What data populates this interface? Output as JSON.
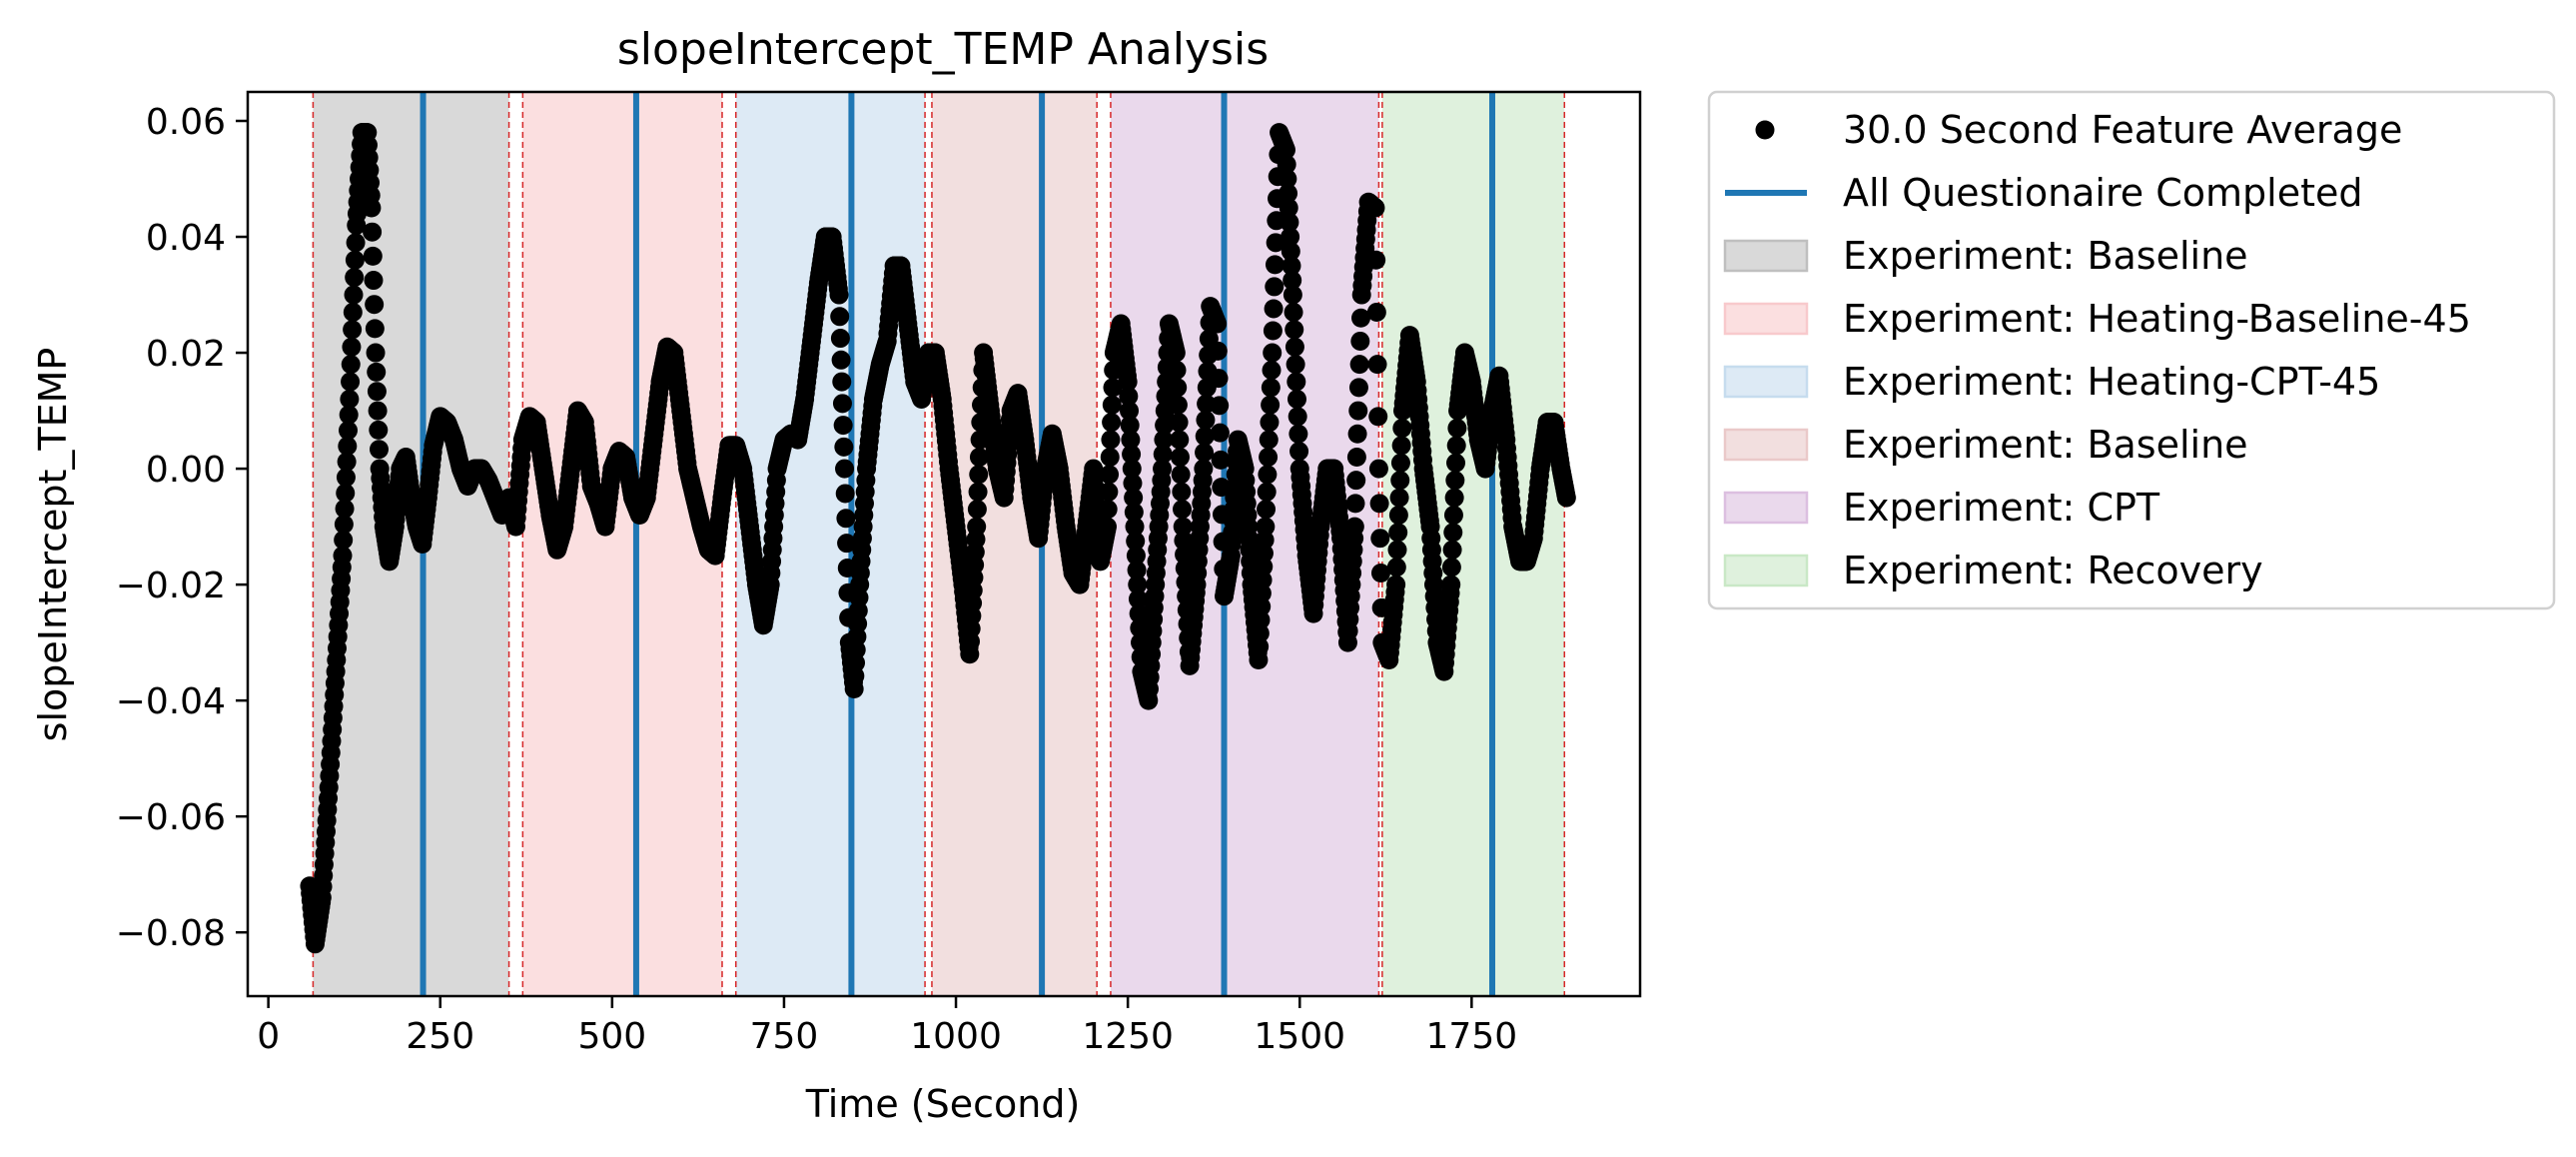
{
  "chart_data": {
    "type": "scatter",
    "title": "slopeIntercept_TEMP Analysis",
    "xlabel": "Time (Second)",
    "ylabel": "slopeIntercept_TEMP",
    "xlim": [
      -30,
      1995
    ],
    "ylim": [
      -0.091,
      0.065
    ],
    "x_ticks": [
      0,
      250,
      500,
      750,
      1000,
      1250,
      1500,
      1750
    ],
    "x_tick_labels": [
      "0",
      "250",
      "500",
      "750",
      "1000",
      "1250",
      "1500",
      "1750"
    ],
    "y_ticks": [
      -0.08,
      -0.06,
      -0.04,
      -0.02,
      0.0,
      0.02,
      0.04,
      0.06
    ],
    "y_tick_labels": [
      "−0.08",
      "−0.06",
      "−0.04",
      "−0.02",
      "0.00",
      "0.02",
      "0.04",
      "0.06"
    ],
    "grid": false,
    "legend_placement": "outside-top-right",
    "phases": [
      {
        "name": "Experiment: Baseline",
        "start": 65,
        "end": 350,
        "color": "#bfbfbf"
      },
      {
        "name": "Experiment: Heating-Baseline-45",
        "start": 370,
        "end": 660,
        "color": "#f8c9cc"
      },
      {
        "name": "Experiment: Heating-CPT-45",
        "start": 680,
        "end": 955,
        "color": "#c6dcee"
      },
      {
        "name": "Experiment: Baseline",
        "start": 965,
        "end": 1205,
        "color": "#eac9c9"
      },
      {
        "name": "Experiment: CPT",
        "start": 1225,
        "end": 1615,
        "color": "#dcbfe0"
      },
      {
        "name": "Experiment: Recovery",
        "start": 1620,
        "end": 1885,
        "color": "#c9e8c6"
      }
    ],
    "phase_boundaries": [
      65,
      350,
      370,
      660,
      680,
      955,
      965,
      1205,
      1225,
      1615,
      1620,
      1885
    ],
    "questionnaire_times": [
      225,
      535,
      848,
      1125,
      1390,
      1780
    ],
    "series": [
      {
        "name": "30.0 Second Feature Average",
        "marker": "circle",
        "color": "#000000",
        "points": [
          [
            60,
            -0.072
          ],
          [
            68,
            -0.082
          ],
          [
            78,
            -0.074
          ],
          [
            88,
            -0.055
          ],
          [
            98,
            -0.035
          ],
          [
            108,
            -0.015
          ],
          [
            118,
            0.012
          ],
          [
            128,
            0.042
          ],
          [
            136,
            0.058
          ],
          [
            144,
            0.058
          ],
          [
            150,
            0.045
          ],
          [
            156,
            0.02
          ],
          [
            162,
            0.0
          ],
          [
            168,
            -0.01
          ],
          [
            176,
            -0.016
          ],
          [
            184,
            -0.01
          ],
          [
            192,
            0.0
          ],
          [
            200,
            0.002
          ],
          [
            208,
            -0.005
          ],
          [
            216,
            -0.01
          ],
          [
            224,
            -0.013
          ],
          [
            232,
            -0.005
          ],
          [
            240,
            0.004
          ],
          [
            250,
            0.009
          ],
          [
            260,
            0.008
          ],
          [
            270,
            0.005
          ],
          [
            280,
            0.0
          ],
          [
            290,
            -0.003
          ],
          [
            300,
            0.0
          ],
          [
            310,
            0.0
          ],
          [
            320,
            -0.002
          ],
          [
            330,
            -0.005
          ],
          [
            340,
            -0.008
          ],
          [
            350,
            -0.005
          ],
          [
            360,
            -0.01
          ],
          [
            370,
            0.005
          ],
          [
            380,
            0.009
          ],
          [
            390,
            0.008
          ],
          [
            400,
            0.0
          ],
          [
            410,
            -0.008
          ],
          [
            420,
            -0.014
          ],
          [
            430,
            -0.01
          ],
          [
            440,
            0.0
          ],
          [
            450,
            0.01
          ],
          [
            460,
            0.008
          ],
          [
            470,
            -0.003
          ],
          [
            480,
            -0.006
          ],
          [
            490,
            -0.01
          ],
          [
            500,
            0.0
          ],
          [
            510,
            0.003
          ],
          [
            520,
            0.002
          ],
          [
            530,
            -0.005
          ],
          [
            540,
            -0.008
          ],
          [
            550,
            -0.005
          ],
          [
            560,
            0.005
          ],
          [
            570,
            0.015
          ],
          [
            580,
            0.021
          ],
          [
            590,
            0.02
          ],
          [
            600,
            0.01
          ],
          [
            610,
            0.0
          ],
          [
            620,
            -0.005
          ],
          [
            630,
            -0.01
          ],
          [
            640,
            -0.014
          ],
          [
            650,
            -0.015
          ],
          [
            660,
            -0.005
          ],
          [
            670,
            0.004
          ],
          [
            680,
            0.004
          ],
          [
            690,
            0.0
          ],
          [
            700,
            -0.01
          ],
          [
            710,
            -0.02
          ],
          [
            720,
            -0.027
          ],
          [
            730,
            -0.02
          ],
          [
            740,
            0.0
          ],
          [
            750,
            0.005
          ],
          [
            760,
            0.006
          ],
          [
            770,
            0.005
          ],
          [
            780,
            0.012
          ],
          [
            790,
            0.022
          ],
          [
            800,
            0.032
          ],
          [
            810,
            0.04
          ],
          [
            820,
            0.04
          ],
          [
            830,
            0.03
          ],
          [
            838,
            0.0
          ],
          [
            845,
            -0.03
          ],
          [
            852,
            -0.038
          ],
          [
            860,
            -0.02
          ],
          [
            870,
            0.0
          ],
          [
            880,
            0.012
          ],
          [
            890,
            0.018
          ],
          [
            900,
            0.022
          ],
          [
            910,
            0.035
          ],
          [
            920,
            0.035
          ],
          [
            930,
            0.025
          ],
          [
            940,
            0.015
          ],
          [
            950,
            0.012
          ],
          [
            960,
            0.02
          ],
          [
            970,
            0.02
          ],
          [
            980,
            0.012
          ],
          [
            990,
            0.0
          ],
          [
            1000,
            -0.01
          ],
          [
            1010,
            -0.02
          ],
          [
            1020,
            -0.032
          ],
          [
            1030,
            -0.01
          ],
          [
            1040,
            0.02
          ],
          [
            1050,
            0.01
          ],
          [
            1060,
            0.0
          ],
          [
            1070,
            -0.005
          ],
          [
            1080,
            0.01
          ],
          [
            1090,
            0.013
          ],
          [
            1100,
            0.005
          ],
          [
            1110,
            -0.005
          ],
          [
            1120,
            -0.012
          ],
          [
            1130,
            0.0
          ],
          [
            1140,
            0.006
          ],
          [
            1150,
            0.0
          ],
          [
            1160,
            -0.01
          ],
          [
            1170,
            -0.018
          ],
          [
            1180,
            -0.02
          ],
          [
            1190,
            -0.01
          ],
          [
            1200,
            0.0
          ],
          [
            1210,
            -0.016
          ],
          [
            1220,
            -0.01
          ],
          [
            1230,
            0.02
          ],
          [
            1240,
            0.025
          ],
          [
            1250,
            0.015
          ],
          [
            1260,
            -0.01
          ],
          [
            1270,
            -0.035
          ],
          [
            1280,
            -0.04
          ],
          [
            1290,
            -0.02
          ],
          [
            1300,
            0.0
          ],
          [
            1310,
            0.025
          ],
          [
            1320,
            0.02
          ],
          [
            1330,
            -0.01
          ],
          [
            1340,
            -0.034
          ],
          [
            1350,
            -0.02
          ],
          [
            1360,
            0.0
          ],
          [
            1370,
            0.028
          ],
          [
            1380,
            0.025
          ],
          [
            1390,
            -0.022
          ],
          [
            1400,
            -0.015
          ],
          [
            1410,
            0.005
          ],
          [
            1420,
            0.0
          ],
          [
            1430,
            -0.02
          ],
          [
            1440,
            -0.033
          ],
          [
            1450,
            -0.01
          ],
          [
            1460,
            0.02
          ],
          [
            1470,
            0.058
          ],
          [
            1480,
            0.055
          ],
          [
            1490,
            0.03
          ],
          [
            1500,
            0.0
          ],
          [
            1510,
            -0.015
          ],
          [
            1520,
            -0.025
          ],
          [
            1530,
            -0.01
          ],
          [
            1540,
            0.0
          ],
          [
            1550,
            0.0
          ],
          [
            1560,
            -0.012
          ],
          [
            1570,
            -0.03
          ],
          [
            1580,
            -0.01
          ],
          [
            1590,
            0.03
          ],
          [
            1600,
            0.046
          ],
          [
            1610,
            0.045
          ],
          [
            1615,
            0.0
          ],
          [
            1620,
            -0.03
          ],
          [
            1630,
            -0.033
          ],
          [
            1640,
            -0.02
          ],
          [
            1650,
            0.01
          ],
          [
            1660,
            0.023
          ],
          [
            1670,
            0.015
          ],
          [
            1680,
            0.0
          ],
          [
            1690,
            -0.01
          ],
          [
            1700,
            -0.03
          ],
          [
            1710,
            -0.035
          ],
          [
            1720,
            -0.02
          ],
          [
            1730,
            0.01
          ],
          [
            1740,
            0.02
          ],
          [
            1750,
            0.015
          ],
          [
            1760,
            0.005
          ],
          [
            1770,
            0.0
          ],
          [
            1780,
            0.01
          ],
          [
            1790,
            0.016
          ],
          [
            1800,
            0.005
          ],
          [
            1810,
            -0.01
          ],
          [
            1820,
            -0.016
          ],
          [
            1830,
            -0.016
          ],
          [
            1840,
            -0.012
          ],
          [
            1850,
            0.0
          ],
          [
            1860,
            0.008
          ],
          [
            1870,
            0.008
          ],
          [
            1880,
            0.0
          ],
          [
            1888,
            -0.005
          ]
        ]
      },
      {
        "name": "All Questionaire Completed",
        "marker": "vertical-line",
        "color": "#1f77b4"
      }
    ],
    "legend": [
      {
        "label": "30.0 Second Feature Average",
        "kind": "marker",
        "color": "#000000"
      },
      {
        "label": "All Questionaire Completed",
        "kind": "line",
        "color": "#1f77b4"
      },
      {
        "label": "Experiment: Baseline",
        "kind": "patch",
        "color": "#bfbfbf"
      },
      {
        "label": "Experiment: Heating-Baseline-45",
        "kind": "patch",
        "color": "#f8c9cc"
      },
      {
        "label": "Experiment: Heating-CPT-45",
        "kind": "patch",
        "color": "#c6dcee"
      },
      {
        "label": "Experiment: Baseline",
        "kind": "patch",
        "color": "#eac9c9"
      },
      {
        "label": "Experiment: CPT",
        "kind": "patch",
        "color": "#dcbfe0"
      },
      {
        "label": "Experiment: Recovery",
        "kind": "patch",
        "color": "#c9e8c6"
      }
    ]
  }
}
